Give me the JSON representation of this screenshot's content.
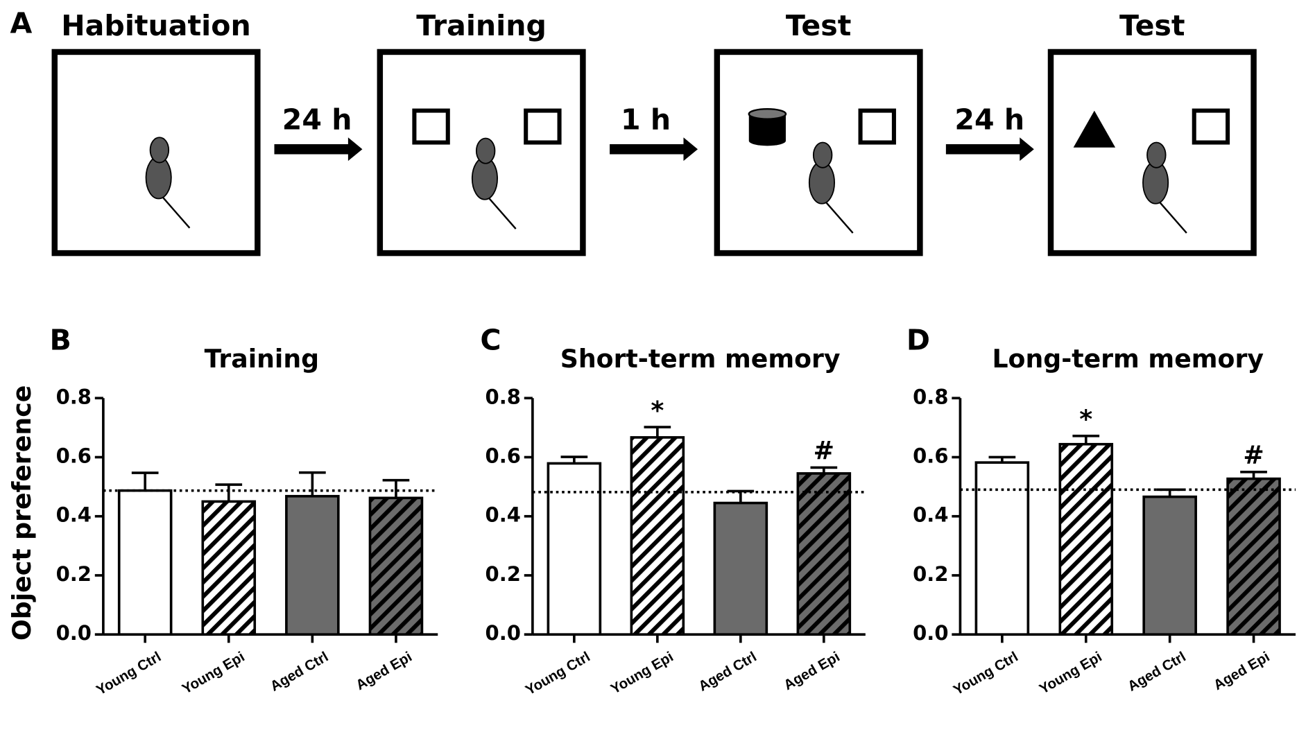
{
  "panel_a": {
    "label": "A",
    "stages": [
      "Habituation",
      "Training",
      "Test",
      "Test"
    ],
    "intervals": [
      "24 h",
      "1 h",
      "24 h"
    ]
  },
  "chart_data": [
    {
      "type": "bar",
      "panel": "B",
      "title": "Training",
      "ylabel": "Object preference",
      "categories": [
        "Young Ctrl",
        "Young Epi",
        "Aged Ctrl",
        "Aged Epi"
      ],
      "values": [
        0.487,
        0.45,
        0.468,
        0.462
      ],
      "errors": [
        0.06,
        0.057,
        0.08,
        0.06
      ],
      "colors": [
        "#ffffff",
        "#ffffff",
        "#6b6b6b",
        "#6b6b6b"
      ],
      "hatched": [
        false,
        true,
        false,
        true
      ],
      "annotations": [
        null,
        null,
        null,
        null
      ],
      "reference_line": 0.487,
      "ylim": [
        0,
        0.8
      ],
      "yticks": [
        {
          "value": 0,
          "label": "0.0"
        },
        {
          "value": 0.2,
          "label": "0.2"
        },
        {
          "value": 0.4,
          "label": "0.4"
        },
        {
          "value": 0.6,
          "label": "0.6"
        },
        {
          "value": 0.8,
          "label": "0.8"
        }
      ]
    },
    {
      "type": "bar",
      "panel": "C",
      "title": "Short-term memory",
      "categories": [
        "Young Ctrl",
        "Young Epi",
        "Aged Ctrl",
        "Aged Epi"
      ],
      "values": [
        0.579,
        0.667,
        0.445,
        0.545
      ],
      "errors": [
        0.022,
        0.035,
        0.04,
        0.02
      ],
      "colors": [
        "#ffffff",
        "#ffffff",
        "#6b6b6b",
        "#6b6b6b"
      ],
      "hatched": [
        false,
        true,
        false,
        true
      ],
      "annotations": [
        null,
        "*",
        null,
        "#"
      ],
      "reference_line": 0.482,
      "ylim": [
        0,
        0.8
      ],
      "yticks": [
        {
          "value": 0,
          "label": "0.0"
        },
        {
          "value": 0.2,
          "label": "0.2"
        },
        {
          "value": 0.4,
          "label": "0.4"
        },
        {
          "value": 0.6,
          "label": "0.6"
        },
        {
          "value": 0.8,
          "label": "0.8"
        }
      ]
    },
    {
      "type": "bar",
      "panel": "D",
      "title": "Long-term memory",
      "categories": [
        "Young Ctrl",
        "Young Epi",
        "Aged Ctrl",
        "Aged Epi"
      ],
      "values": [
        0.582,
        0.644,
        0.466,
        0.527
      ],
      "errors": [
        0.018,
        0.028,
        0.024,
        0.023
      ],
      "colors": [
        "#ffffff",
        "#ffffff",
        "#6b6b6b",
        "#6b6b6b"
      ],
      "hatched": [
        false,
        true,
        false,
        true
      ],
      "annotations": [
        null,
        "*",
        null,
        "#"
      ],
      "reference_line": 0.49,
      "ylim": [
        0,
        0.8
      ],
      "yticks": [
        {
          "value": 0,
          "label": "0.0"
        },
        {
          "value": 0.2,
          "label": "0.2"
        },
        {
          "value": 0.4,
          "label": "0.4"
        },
        {
          "value": 0.6,
          "label": "0.6"
        },
        {
          "value": 0.8,
          "label": "0.8"
        }
      ]
    }
  ]
}
